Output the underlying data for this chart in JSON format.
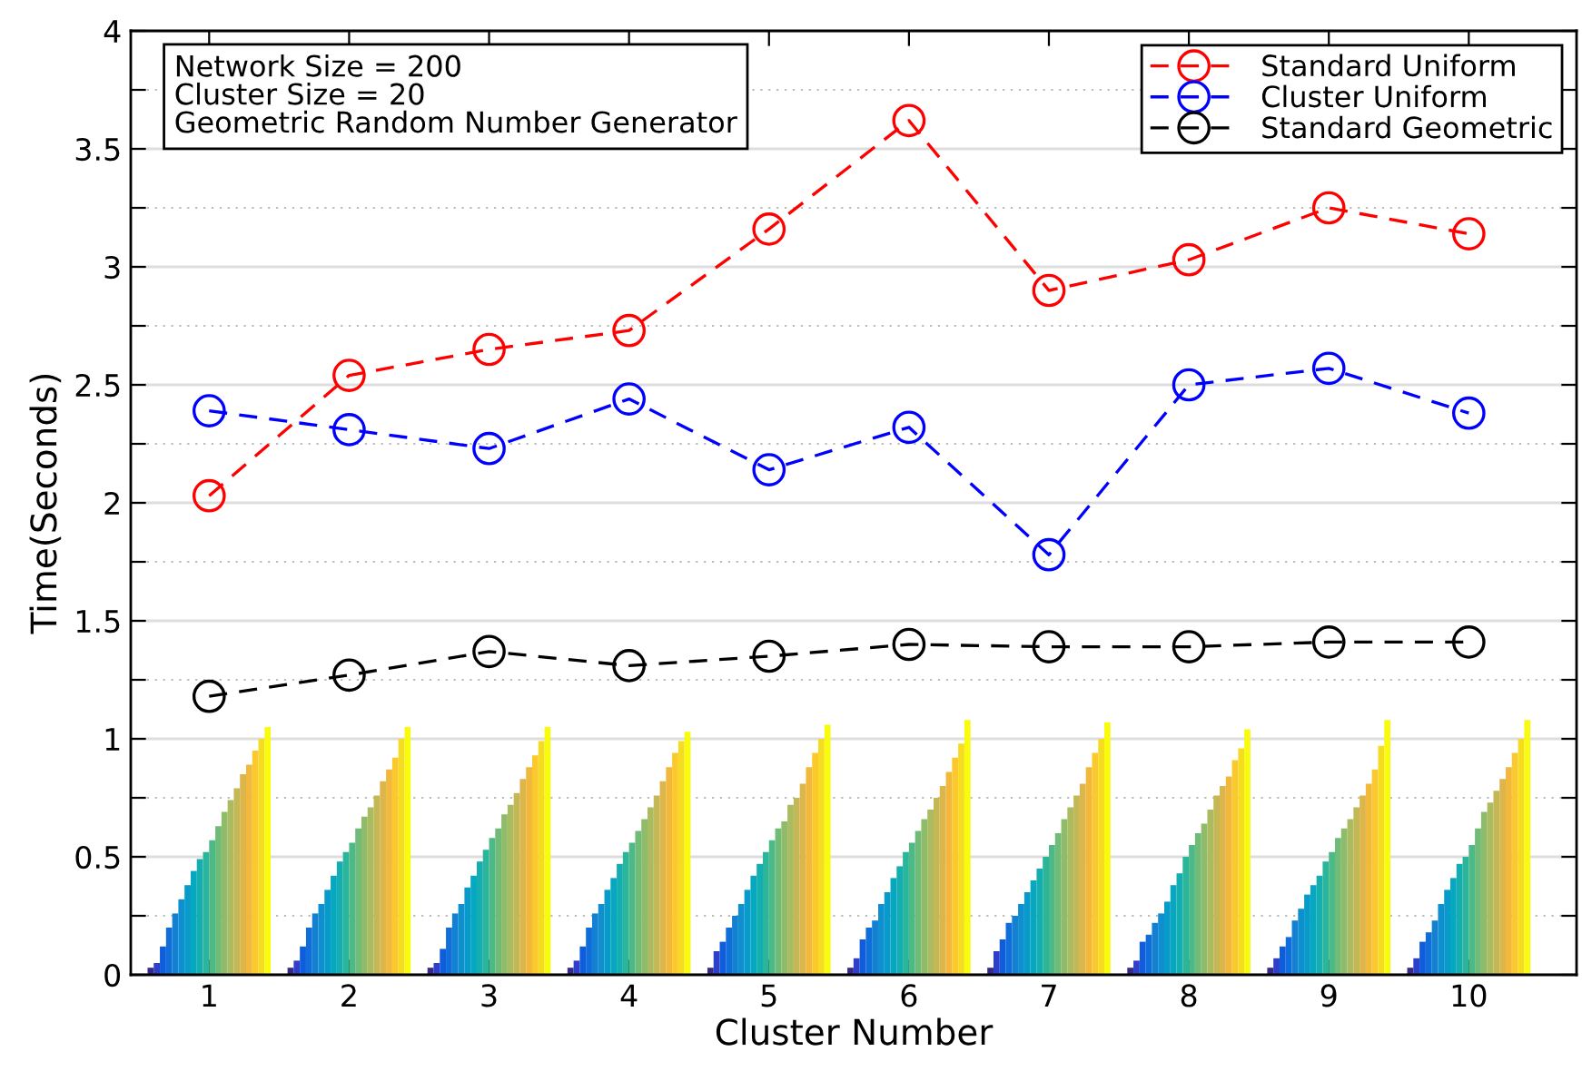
{
  "chart_data": {
    "type": "bar",
    "xlabel": "Cluster Number",
    "ylabel": "Time(Seconds)",
    "categories": [
      "1",
      "2",
      "3",
      "4",
      "5",
      "6",
      "7",
      "8",
      "9",
      "10"
    ],
    "ylim": [
      0,
      4
    ],
    "yticks": [
      0,
      {
        "value": 0.25,
        "label": null
      },
      0.5,
      {
        "value": 0.75,
        "label": null
      },
      1,
      {
        "value": 1.25,
        "label": null
      },
      1.5,
      {
        "value": 1.75,
        "label": null
      },
      2,
      {
        "value": 2.25,
        "label": null
      },
      2.5,
      {
        "value": 2.75,
        "label": null
      },
      3,
      {
        "value": 3.25,
        "label": null
      },
      3.5,
      {
        "value": 3.75,
        "label": null
      },
      4
    ],
    "grid": "y",
    "legend": "top right",
    "annotations": [
      "Network Size = 200\nCluster Size = 20\nGeometric Random Number Generator"
    ],
    "series": [
      {
        "color": "#352a87",
        "values": [
          0.03,
          0.03,
          0.03,
          0.03,
          0.03,
          0.03,
          0.03,
          0.03,
          0.03,
          0.03
        ]
      },
      {
        "color": "#2f3fc8",
        "values": [
          0.05,
          0.06,
          0.05,
          0.06,
          0.1,
          0.07,
          0.1,
          0.06,
          0.07,
          0.07
        ]
      },
      {
        "color": "#0f5cdd",
        "values": [
          0.12,
          0.12,
          0.11,
          0.12,
          0.14,
          0.15,
          0.15,
          0.14,
          0.12,
          0.14
        ]
      },
      {
        "color": "#0f6ed9",
        "values": [
          0.2,
          0.2,
          0.2,
          0.2,
          0.2,
          0.2,
          0.22,
          0.17,
          0.16,
          0.18
        ]
      },
      {
        "color": "#1380d2",
        "values": [
          0.26,
          0.26,
          0.26,
          0.26,
          0.25,
          0.23,
          0.25,
          0.22,
          0.23,
          0.23
        ]
      },
      {
        "color": "#0d8fd0",
        "values": [
          0.32,
          0.3,
          0.3,
          0.3,
          0.3,
          0.3,
          0.3,
          0.26,
          0.28,
          0.3
        ]
      },
      {
        "color": "#089bc9",
        "values": [
          0.38,
          0.36,
          0.37,
          0.36,
          0.36,
          0.35,
          0.35,
          0.31,
          0.34,
          0.36
        ]
      },
      {
        "color": "#06a7c0",
        "values": [
          0.44,
          0.42,
          0.42,
          0.41,
          0.42,
          0.41,
          0.4,
          0.38,
          0.38,
          0.41
        ]
      },
      {
        "color": "#14aeb0",
        "values": [
          0.49,
          0.48,
          0.48,
          0.47,
          0.47,
          0.46,
          0.45,
          0.43,
          0.42,
          0.47
        ]
      },
      {
        "color": "#2bb59b",
        "values": [
          0.52,
          0.52,
          0.53,
          0.52,
          0.52,
          0.52,
          0.5,
          0.5,
          0.48,
          0.5
        ]
      },
      {
        "color": "#4cba87",
        "values": [
          0.57,
          0.56,
          0.58,
          0.56,
          0.57,
          0.56,
          0.55,
          0.55,
          0.52,
          0.55
        ]
      },
      {
        "color": "#6fbb77",
        "values": [
          0.63,
          0.62,
          0.62,
          0.61,
          0.62,
          0.61,
          0.6,
          0.6,
          0.58,
          0.62
        ]
      },
      {
        "color": "#8fbc6a",
        "values": [
          0.69,
          0.67,
          0.68,
          0.66,
          0.65,
          0.66,
          0.66,
          0.64,
          0.62,
          0.69
        ]
      },
      {
        "color": "#abbb5f",
        "values": [
          0.74,
          0.71,
          0.72,
          0.71,
          0.72,
          0.7,
          0.71,
          0.7,
          0.66,
          0.73
        ]
      },
      {
        "color": "#c4b856",
        "values": [
          0.79,
          0.76,
          0.77,
          0.76,
          0.75,
          0.75,
          0.76,
          0.76,
          0.71,
          0.78
        ]
      },
      {
        "color": "#dcb54b",
        "values": [
          0.85,
          0.82,
          0.83,
          0.82,
          0.81,
          0.8,
          0.81,
          0.8,
          0.76,
          0.83
        ]
      },
      {
        "color": "#f1b83c",
        "values": [
          0.89,
          0.87,
          0.88,
          0.88,
          0.88,
          0.86,
          0.88,
          0.84,
          0.81,
          0.88
        ]
      },
      {
        "color": "#fbc92d",
        "values": [
          0.95,
          0.92,
          0.93,
          0.94,
          0.94,
          0.92,
          0.94,
          0.91,
          0.87,
          0.94
        ]
      },
      {
        "color": "#f6dc21",
        "values": [
          1.0,
          1.0,
          0.99,
          0.99,
          1.0,
          0.98,
          1.0,
          0.96,
          0.97,
          1.0
        ]
      },
      {
        "color": "#f9fb0e",
        "values": [
          1.05,
          1.05,
          1.05,
          1.03,
          1.06,
          1.08,
          1.07,
          1.04,
          1.08,
          1.08
        ]
      },
      {
        "type": "line",
        "name": "Standard Uniform",
        "color": "#ff0000",
        "marker": "circle",
        "line_style": "dashed",
        "values": [
          2.03,
          2.54,
          2.65,
          2.73,
          3.16,
          3.62,
          2.9,
          3.03,
          3.25,
          3.14
        ]
      },
      {
        "type": "line",
        "name": "Cluster Uniform",
        "color": "#0000ff",
        "marker": "circle",
        "line_style": "dashed",
        "values": [
          2.39,
          2.31,
          2.23,
          2.44,
          2.14,
          2.32,
          1.78,
          2.5,
          2.57,
          2.38
        ]
      },
      {
        "type": "line",
        "name": "Standard Geometric",
        "color": "#000000",
        "marker": "circle",
        "line_style": "dashed",
        "values": [
          1.18,
          1.27,
          1.37,
          1.31,
          1.35,
          1.4,
          1.39,
          1.39,
          1.41,
          1.41
        ]
      }
    ]
  }
}
